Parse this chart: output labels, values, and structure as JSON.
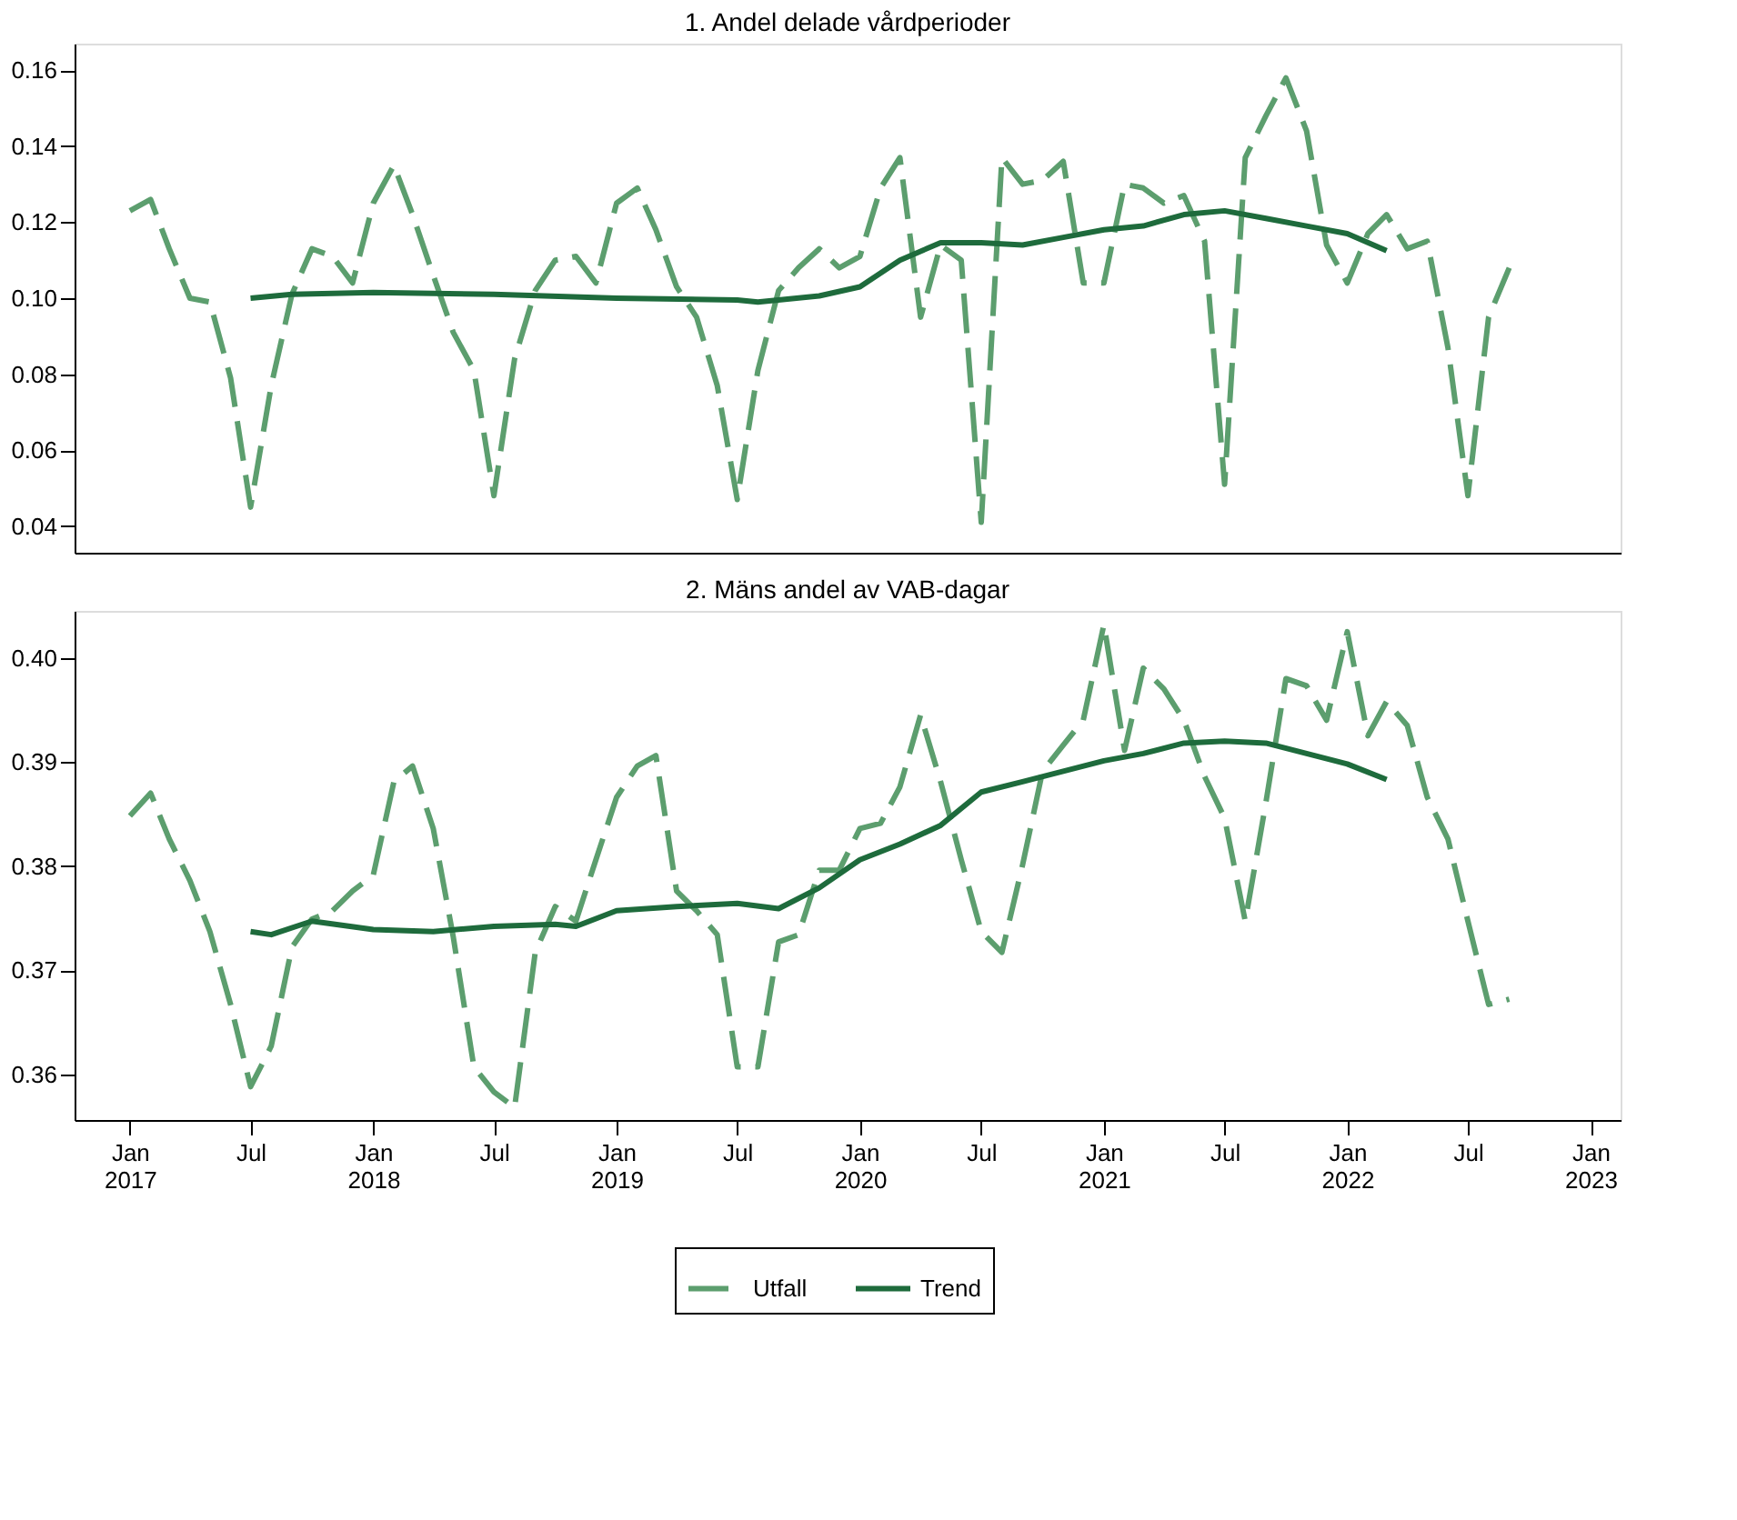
{
  "chart_data": [
    {
      "type": "line",
      "title": "1. Andel delade vårdperioder",
      "x": [
        "2017-01",
        "2017-02",
        "2017-03",
        "2017-04",
        "2017-05",
        "2017-06",
        "2017-07",
        "2017-08",
        "2017-09",
        "2017-10",
        "2017-11",
        "2017-12",
        "2018-01",
        "2018-02",
        "2018-03",
        "2018-04",
        "2018-05",
        "2018-06",
        "2018-07",
        "2018-08",
        "2018-09",
        "2018-10",
        "2018-11",
        "2018-12",
        "2019-01",
        "2019-02",
        "2019-03",
        "2019-04",
        "2019-05",
        "2019-06",
        "2019-07",
        "2019-08",
        "2019-09",
        "2019-10",
        "2019-11",
        "2019-12",
        "2020-01",
        "2020-02",
        "2020-03",
        "2020-04",
        "2020-05",
        "2020-06",
        "2020-07",
        "2020-08",
        "2020-09",
        "2020-10",
        "2020-11",
        "2020-12",
        "2021-01",
        "2021-02",
        "2021-03",
        "2021-04",
        "2021-05",
        "2021-06",
        "2021-07",
        "2021-08",
        "2021-09",
        "2021-10",
        "2021-11",
        "2021-12",
        "2022-01",
        "2022-02",
        "2022-03",
        "2022-04",
        "2022-05",
        "2022-06",
        "2022-07",
        "2022-08",
        "2022-09"
      ],
      "series": [
        {
          "name": "Utfall",
          "color": "#5c9e6e",
          "line_style": "dashed",
          "values": [
            0.123,
            0.126,
            0.113,
            0.1,
            0.099,
            0.079,
            0.045,
            0.077,
            0.101,
            0.113,
            0.111,
            0.104,
            0.125,
            0.135,
            0.122,
            0.106,
            0.091,
            0.081,
            0.048,
            0.084,
            0.102,
            0.11,
            0.111,
            0.104,
            0.125,
            0.129,
            0.118,
            0.103,
            0.095,
            0.077,
            0.047,
            0.081,
            0.102,
            0.108,
            0.113,
            0.108,
            0.111,
            0.129,
            0.137,
            0.095,
            0.114,
            0.11,
            0.041,
            0.137,
            0.13,
            0.131,
            0.136,
            0.104,
            0.104,
            0.13,
            0.129,
            0.125,
            0.127,
            0.115,
            0.051,
            0.137,
            0.148,
            0.158,
            0.144,
            0.114,
            0.104,
            0.117,
            0.122,
            0.113,
            0.115,
            0.087,
            0.048,
            0.095,
            0.108
          ]
        },
        {
          "name": "Trend",
          "color": "#1e6b3c",
          "line_style": "solid",
          "x": [
            "2017-07",
            "2017-09",
            "2018-01",
            "2018-07",
            "2019-01",
            "2019-07",
            "2019-08",
            "2019-11",
            "2020-01",
            "2020-03",
            "2020-05",
            "2020-07",
            "2020-09",
            "2020-11",
            "2021-01",
            "2021-03",
            "2021-05",
            "2021-07",
            "2021-09",
            "2021-11",
            "2022-01",
            "2022-03"
          ],
          "values": [
            0.1,
            0.101,
            0.1015,
            0.101,
            0.1,
            0.0995,
            0.099,
            0.1006,
            0.103,
            0.11,
            0.1146,
            0.1146,
            0.114,
            0.116,
            0.118,
            0.119,
            0.122,
            0.123,
            0.121,
            0.119,
            0.117,
            0.1125
          ]
        }
      ],
      "xlim": [
        "2016-10-10",
        "2023-02-15"
      ],
      "xticks": [
        {
          "value": "2017-01",
          "label": "Jan\n2017"
        },
        {
          "value": "2017-07",
          "label": "Jul"
        },
        {
          "value": "2018-01",
          "label": "Jan\n2018"
        },
        {
          "value": "2018-07",
          "label": "Jul"
        },
        {
          "value": "2019-01",
          "label": "Jan\n2019"
        },
        {
          "value": "2019-07",
          "label": "Jul"
        },
        {
          "value": "2020-01",
          "label": "Jan\n2020"
        },
        {
          "value": "2020-07",
          "label": "Jul"
        },
        {
          "value": "2021-01",
          "label": "Jan\n2021"
        },
        {
          "value": "2021-07",
          "label": "Jul"
        },
        {
          "value": "2022-01",
          "label": "Jan\n2022"
        },
        {
          "value": "2022-07",
          "label": "Jul"
        },
        {
          "value": "2023-01",
          "label": "Jan\n2023"
        }
      ],
      "ylim": [
        0.033,
        0.167
      ],
      "yticks": [
        {
          "value": 0.04,
          "label": "0.04"
        },
        {
          "value": 0.06,
          "label": "0.06"
        },
        {
          "value": 0.08,
          "label": "0.08"
        },
        {
          "value": 0.1,
          "label": "0.10"
        },
        {
          "value": 0.12,
          "label": "0.12"
        },
        {
          "value": 0.14,
          "label": "0.14"
        },
        {
          "value": 0.16,
          "label": "0.16"
        }
      ],
      "tick_labels": "y",
      "legend": "bottom"
    },
    {
      "type": "line",
      "title": "2. Mäns andel av VAB-dagar",
      "x": [
        "2017-01",
        "2017-02",
        "2017-03",
        "2017-04",
        "2017-05",
        "2017-06",
        "2017-07",
        "2017-08",
        "2017-09",
        "2017-10",
        "2017-11",
        "2017-12",
        "2018-01",
        "2018-02",
        "2018-03",
        "2018-04",
        "2018-05",
        "2018-06",
        "2018-07",
        "2018-08",
        "2018-09",
        "2018-10",
        "2018-11",
        "2018-12",
        "2019-01",
        "2019-02",
        "2019-03",
        "2019-04",
        "2019-05",
        "2019-06",
        "2019-07",
        "2019-08",
        "2019-09",
        "2019-10",
        "2019-11",
        "2019-12",
        "2020-01",
        "2020-02",
        "2020-03",
        "2020-04",
        "2020-05",
        "2020-06",
        "2020-07",
        "2020-08",
        "2020-09",
        "2020-10",
        "2020-11",
        "2020-12",
        "2021-01",
        "2021-02",
        "2021-03",
        "2021-04",
        "2021-05",
        "2021-06",
        "2021-07",
        "2021-08",
        "2021-09",
        "2021-10",
        "2021-11",
        "2021-12",
        "2022-01",
        "2022-02",
        "2022-03",
        "2022-04",
        "2022-05",
        "2022-06",
        "2022-07",
        "2022-08",
        "2022-09"
      ],
      "series": [
        {
          "name": "Utfall",
          "color": "#5c9e6e",
          "line_style": "dashed",
          "values": [
            0.3848,
            0.387,
            0.3826,
            0.3786,
            0.3737,
            0.3667,
            0.3588,
            0.3627,
            0.3722,
            0.3749,
            0.3757,
            0.3776,
            0.3791,
            0.3881,
            0.3896,
            0.3836,
            0.3732,
            0.3607,
            0.3583,
            0.3568,
            0.3717,
            0.3761,
            0.3747,
            0.3806,
            0.3866,
            0.3896,
            0.3906,
            0.3776,
            0.3757,
            0.3734,
            0.3607,
            0.3607,
            0.3727,
            0.3734,
            0.3796,
            0.3796,
            0.3836,
            0.3841,
            0.3876,
            0.3945,
            0.3881,
            0.3806,
            0.3737,
            0.3717,
            0.3801,
            0.3891,
            0.3916,
            0.394,
            0.4032,
            0.3911,
            0.399,
            0.397,
            0.394,
            0.3886,
            0.3846,
            0.3747,
            0.3861,
            0.398,
            0.3973,
            0.394,
            0.4025,
            0.3925,
            0.3958,
            0.3935,
            0.3866,
            0.3826,
            0.3747,
            0.3667,
            0.3672
          ]
        },
        {
          "name": "Trend",
          "color": "#1e6b3c",
          "line_style": "solid",
          "x": [
            "2017-07",
            "2017-08",
            "2017-10",
            "2018-01",
            "2018-04",
            "2018-07",
            "2018-10",
            "2018-11",
            "2019-01",
            "2019-04",
            "2019-07",
            "2019-09",
            "2019-11",
            "2020-01",
            "2020-03",
            "2020-05",
            "2020-07",
            "2020-09",
            "2020-11",
            "2021-01",
            "2021-03",
            "2021-05",
            "2021-07",
            "2021-09",
            "2021-11",
            "2022-01",
            "2022-03"
          ],
          "values": [
            0.3737,
            0.3734,
            0.3747,
            0.3739,
            0.3737,
            0.3742,
            0.3744,
            0.3742,
            0.3757,
            0.3761,
            0.3764,
            0.3759,
            0.3779,
            0.3806,
            0.3821,
            0.3839,
            0.3871,
            0.3881,
            0.3891,
            0.3901,
            0.3908,
            0.3918,
            0.392,
            0.3918,
            0.3908,
            0.3898,
            0.3883
          ]
        }
      ],
      "xlim": [
        "2016-10-10",
        "2023-02-15"
      ],
      "xticks": [
        {
          "value": "2017-01",
          "label": "Jan\n2017"
        },
        {
          "value": "2017-07",
          "label": "Jul"
        },
        {
          "value": "2018-01",
          "label": "Jan\n2018"
        },
        {
          "value": "2018-07",
          "label": "Jul"
        },
        {
          "value": "2019-01",
          "label": "Jan\n2019"
        },
        {
          "value": "2019-07",
          "label": "Jul"
        },
        {
          "value": "2020-01",
          "label": "Jan\n2020"
        },
        {
          "value": "2020-07",
          "label": "Jul"
        },
        {
          "value": "2021-01",
          "label": "Jan\n2021"
        },
        {
          "value": "2021-07",
          "label": "Jul"
        },
        {
          "value": "2022-01",
          "label": "Jan\n2022"
        },
        {
          "value": "2022-07",
          "label": "Jul"
        },
        {
          "value": "2023-01",
          "label": "Jan\n2023"
        }
      ],
      "ylim": [
        0.3556,
        0.4045
      ],
      "yticks": [
        {
          "value": 0.36,
          "label": "0.36"
        },
        {
          "value": 0.37,
          "label": "0.37"
        },
        {
          "value": 0.38,
          "label": "0.38"
        },
        {
          "value": 0.39,
          "label": "0.39"
        },
        {
          "value": 0.4,
          "label": "0.40"
        }
      ],
      "legend": "bottom"
    }
  ]
}
